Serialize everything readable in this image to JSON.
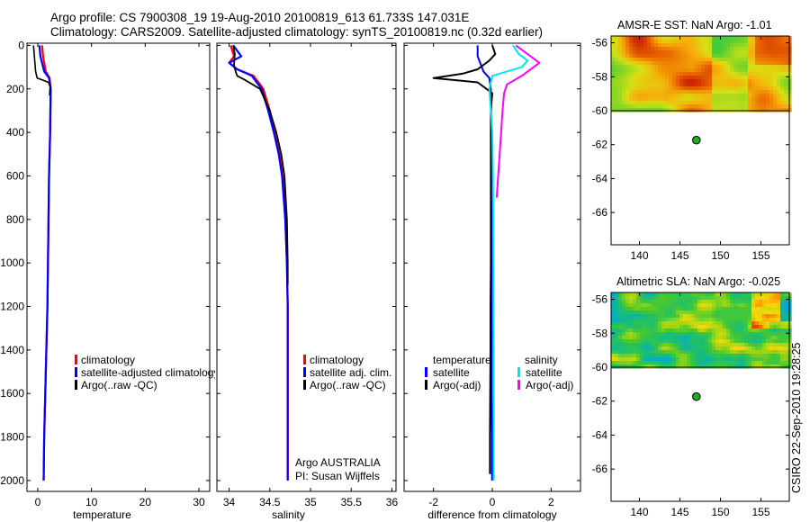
{
  "header": {
    "line1": "Argo profile: CS 7900308_19 19-Aug-2010 20100819_613 61.733S 147.031E",
    "line2": "Climatology: CARS2009. Satellite-adjusted climatology: synTS_20100819.nc (0.32d earlier)"
  },
  "side_credit": "CSIRO 22-Sep-2010 19:28:25",
  "colors": {
    "red": "#ff0000",
    "blue": "#0000ff",
    "black": "#000000",
    "cyan": "#00e5ee",
    "magenta": "#ff00ff",
    "ocean_dot": "#22aa22"
  },
  "chart_data": [
    {
      "id": "temp",
      "type": "line",
      "title": "",
      "xlabel": "temperature",
      "ylabel": "",
      "xlim": [
        -2,
        32
      ],
      "ylim": [
        2050,
        -10
      ],
      "xticks": [
        0,
        10,
        20,
        30
      ],
      "yticks": [
        0,
        200,
        400,
        600,
        800,
        1000,
        1200,
        1400,
        1600,
        1800,
        2000
      ],
      "legend": {
        "placement": "center-right",
        "entries": [
          {
            "label": "climatology",
            "color": "red"
          },
          {
            "label": "satellite-adjusted climatology",
            "color": "blue"
          },
          {
            "label": "Argo(..raw -QC)",
            "color": "black"
          }
        ]
      },
      "series": [
        {
          "name": "climatology",
          "color": "red",
          "width": 2.2,
          "x": [
            0.8,
            1.0,
            1.5,
            2.2,
            2.4,
            2.3,
            2.1,
            2.0,
            1.9,
            1.8,
            1.6,
            1.4,
            1.2,
            1.1
          ],
          "y": [
            0,
            50,
            120,
            150,
            200,
            400,
            600,
            800,
            1000,
            1200,
            1400,
            1600,
            1800,
            2000
          ]
        },
        {
          "name": "satellite-adjusted climatology",
          "color": "blue",
          "width": 2.2,
          "x": [
            0.3,
            0.5,
            1.2,
            2.1,
            2.4,
            2.3,
            2.1,
            2.0,
            1.9,
            1.8,
            1.6,
            1.4,
            1.2,
            1.1
          ],
          "y": [
            0,
            50,
            120,
            150,
            200,
            400,
            600,
            800,
            1000,
            1200,
            1400,
            1600,
            1800,
            2000
          ]
        },
        {
          "name": "Argo(..raw -QC)",
          "color": "black",
          "width": 1.6,
          "x": [
            -0.8,
            -0.6,
            -0.4,
            -0.1,
            1.0,
            2.0,
            2.3,
            2.2
          ],
          "y": [
            0,
            60,
            120,
            150,
            160,
            170,
            190,
            230
          ]
        }
      ]
    },
    {
      "id": "sal",
      "type": "line",
      "title": "",
      "xlabel": "salinity",
      "ylabel": "",
      "xlim": [
        33.85,
        36.05
      ],
      "ylim": [
        2050,
        -10
      ],
      "xticks": [
        34,
        34.5,
        35,
        35.5,
        36
      ],
      "xticklabels": [
        "34",
        "34.5",
        "35",
        "35.5",
        "36"
      ],
      "legend": {
        "placement": "center-right",
        "entries": [
          {
            "label": "climatology",
            "color": "red"
          },
          {
            "label": "satellite adj. clim.",
            "color": "blue"
          },
          {
            "label": "Argo(..raw -QC)",
            "color": "black"
          }
        ]
      },
      "annotation": [
        "Argo AUSTRALIA",
        "PI: Susan Wijffels"
      ],
      "series": [
        {
          "name": "climatology",
          "color": "red",
          "width": 2.2,
          "x": [
            34.02,
            34.06,
            34.0,
            34.1,
            34.3,
            34.42,
            34.5,
            34.56,
            34.62,
            34.66,
            34.69,
            34.71,
            34.72,
            34.72,
            34.72,
            34.72,
            34.72
          ],
          "y": [
            0,
            50,
            80,
            110,
            140,
            200,
            300,
            400,
            500,
            600,
            800,
            1000,
            1200,
            1400,
            1600,
            1800,
            2000
          ]
        },
        {
          "name": "satellite adj. clim.",
          "color": "blue",
          "width": 2.2,
          "x": [
            34.05,
            34.15,
            34.0,
            34.1,
            34.28,
            34.4,
            34.48,
            34.55,
            34.61,
            34.65,
            34.69,
            34.71,
            34.72,
            34.72,
            34.72,
            34.72,
            34.72
          ],
          "y": [
            0,
            50,
            80,
            110,
            140,
            200,
            300,
            400,
            500,
            600,
            800,
            1000,
            1200,
            1400,
            1600,
            1800,
            2000
          ]
        },
        {
          "name": "Argo(..raw -QC)",
          "color": "black",
          "width": 1.8,
          "x": [
            34.05,
            34.07,
            34.06,
            34.08,
            34.1,
            34.2,
            34.38,
            34.5,
            34.58,
            34.64,
            34.68,
            34.71,
            34.72,
            34.72
          ],
          "y": [
            0,
            40,
            90,
            120,
            140,
            160,
            200,
            300,
            400,
            500,
            600,
            800,
            1000,
            1100
          ]
        }
      ]
    },
    {
      "id": "diff",
      "type": "line",
      "title": "",
      "xlabel": "difference from climatology",
      "ylabel": "",
      "xlim": [
        -3.0,
        3.0
      ],
      "ylim": [
        2050,
        -10
      ],
      "xticks": [
        -2,
        0,
        2
      ],
      "legend": {
        "placement": "center-right",
        "groups": [
          {
            "heading": "temperature",
            "entries": [
              {
                "label": "satellite",
                "color": "blue"
              },
              {
                "label": "Argo(-adj)",
                "color": "black"
              }
            ]
          },
          {
            "heading": "salinity",
            "entries": [
              {
                "label": "satellite",
                "color": "cyan"
              },
              {
                "label": "Argo(-adj)",
                "color": "magenta"
              }
            ]
          }
        ]
      },
      "series": [
        {
          "name": "temperature satellite",
          "color": "blue",
          "width": 2,
          "x": [
            -0.5,
            -0.5,
            -0.3,
            -0.1,
            -0.05,
            -0.04,
            -0.03,
            -0.03,
            -0.03,
            -0.02,
            -0.02,
            -0.02,
            -0.02,
            -0.01,
            -0.01
          ],
          "y": [
            0,
            50,
            120,
            150,
            200,
            300,
            400,
            600,
            800,
            1000,
            1200,
            1400,
            1600,
            1800,
            2000
          ]
        },
        {
          "name": "temperature Argo(-adj)",
          "color": "black",
          "width": 2,
          "x": [
            0.0,
            0.1,
            -0.1,
            -0.5,
            -1.0,
            -2.0,
            -0.5,
            0.0,
            -0.05,
            -0.05,
            -0.05,
            -0.05,
            -0.06,
            -0.06,
            -0.07,
            -0.08,
            -0.08,
            -0.08
          ],
          "y": [
            0,
            40,
            70,
            110,
            130,
            150,
            170,
            220,
            300,
            600,
            800,
            1000,
            1200,
            1400,
            1600,
            1800,
            1950,
            1970
          ]
        },
        {
          "name": "salinity satellite",
          "color": "cyan",
          "width": 2,
          "x": [
            0.7,
            0.9,
            1.2,
            1.0,
            0.0,
            -0.1,
            -0.05,
            0.0,
            0.02,
            0.03,
            0.04,
            0.04,
            0.05,
            0.05,
            0.05,
            0.05,
            0.05
          ],
          "y": [
            0,
            40,
            70,
            100,
            140,
            200,
            300,
            400,
            600,
            800,
            1000,
            1200,
            1400,
            1600,
            1800,
            1900,
            2000
          ]
        },
        {
          "name": "salinity Argo(-adj)",
          "color": "magenta",
          "width": 2,
          "x": [
            0.8,
            1.2,
            1.6,
            1.0,
            0.5,
            0.4,
            0.35,
            0.3,
            0.25,
            0.2,
            0.15
          ],
          "y": [
            0,
            40,
            80,
            140,
            180,
            220,
            300,
            400,
            500,
            600,
            700
          ]
        }
      ]
    },
    {
      "id": "sst",
      "type": "heatmap",
      "title": "AMSR-E SST: NaN Argo: -1.01",
      "xlabel": "",
      "ylabel": "",
      "xlim": [
        136.5,
        158.5
      ],
      "ylim": [
        -67.9,
        -55.6
      ],
      "map_lat_range": [
        -60,
        -55.6
      ],
      "xticks": [
        140,
        145,
        150,
        155
      ],
      "yticks": [
        -56,
        -58,
        -60,
        -62,
        -64,
        -66
      ],
      "colormap": "temperature",
      "marker": {
        "lon": 147.031,
        "lat": -61.733
      }
    },
    {
      "id": "sla",
      "type": "heatmap",
      "title": "Altimetric SLA: NaN Argo: -0.025",
      "xlabel": "",
      "ylabel": "",
      "xlim": [
        136.5,
        158.5
      ],
      "ylim": [
        -67.9,
        -55.6
      ],
      "map_lat_range": [
        -60,
        -55.6
      ],
      "xticks": [
        140,
        145,
        150,
        155
      ],
      "yticks": [
        -56,
        -58,
        -60,
        -62,
        -64,
        -66
      ],
      "colormap": "sla",
      "marker": {
        "lon": 147.031,
        "lat": -61.733
      }
    }
  ]
}
